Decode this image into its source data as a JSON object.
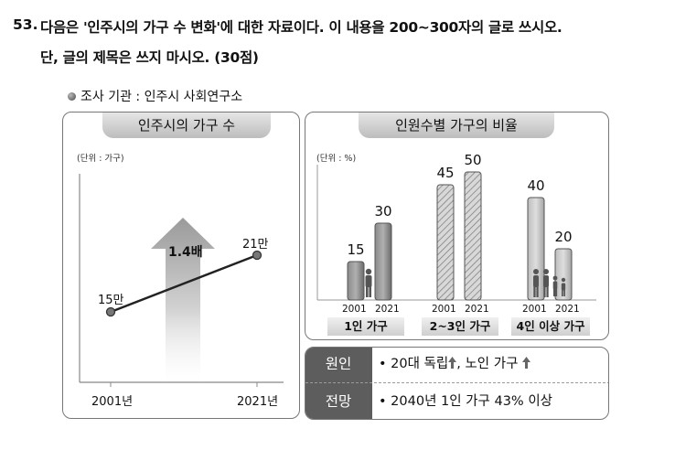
{
  "question": {
    "number": "53.",
    "line1": "다음은 '인주시의 가구 수 변화'에 대한 자료이다. 이 내용을 200~300자의 글로 쓰시오.",
    "line2": "단, 글의 제목은 쓰지 마시오. (30점)"
  },
  "source": "조사 기관 : 인주시 사회연구소",
  "left_panel": {
    "title": "인주시의 가구 수",
    "unit": "(단위 : 가구)",
    "growth_label": "1.4배"
  },
  "right_panel": {
    "title": "인원수별 가구의 비율",
    "unit": "(단위 : %)"
  },
  "chart_data": [
    {
      "type": "line",
      "title": "인주시의 가구 수",
      "unit": "(단위 : 가구)",
      "x": [
        "2001년",
        "2021년"
      ],
      "values": [
        15,
        21
      ],
      "value_labels": [
        "15만",
        "21만"
      ],
      "annotation": "1.4배"
    },
    {
      "type": "bar",
      "title": "인원수별 가구의 비율",
      "unit": "(단위 : %)",
      "series_years": [
        "2001",
        "2021"
      ],
      "ylim": [
        0,
        55
      ],
      "groups": [
        {
          "category": "1인 가구",
          "values": [
            15,
            30
          ]
        },
        {
          "category": "2~3인 가구",
          "values": [
            45,
            50
          ]
        },
        {
          "category": "4인 이상 가구",
          "values": [
            40,
            20
          ]
        }
      ]
    }
  ],
  "summary_table": {
    "cause_header": "원인",
    "cause_text_1": "• 20대 독립",
    "cause_text_2": ", 노인 가구",
    "outlook_header": "전망",
    "outlook_text": "• 2040년 1인 가구 43% 이상"
  }
}
